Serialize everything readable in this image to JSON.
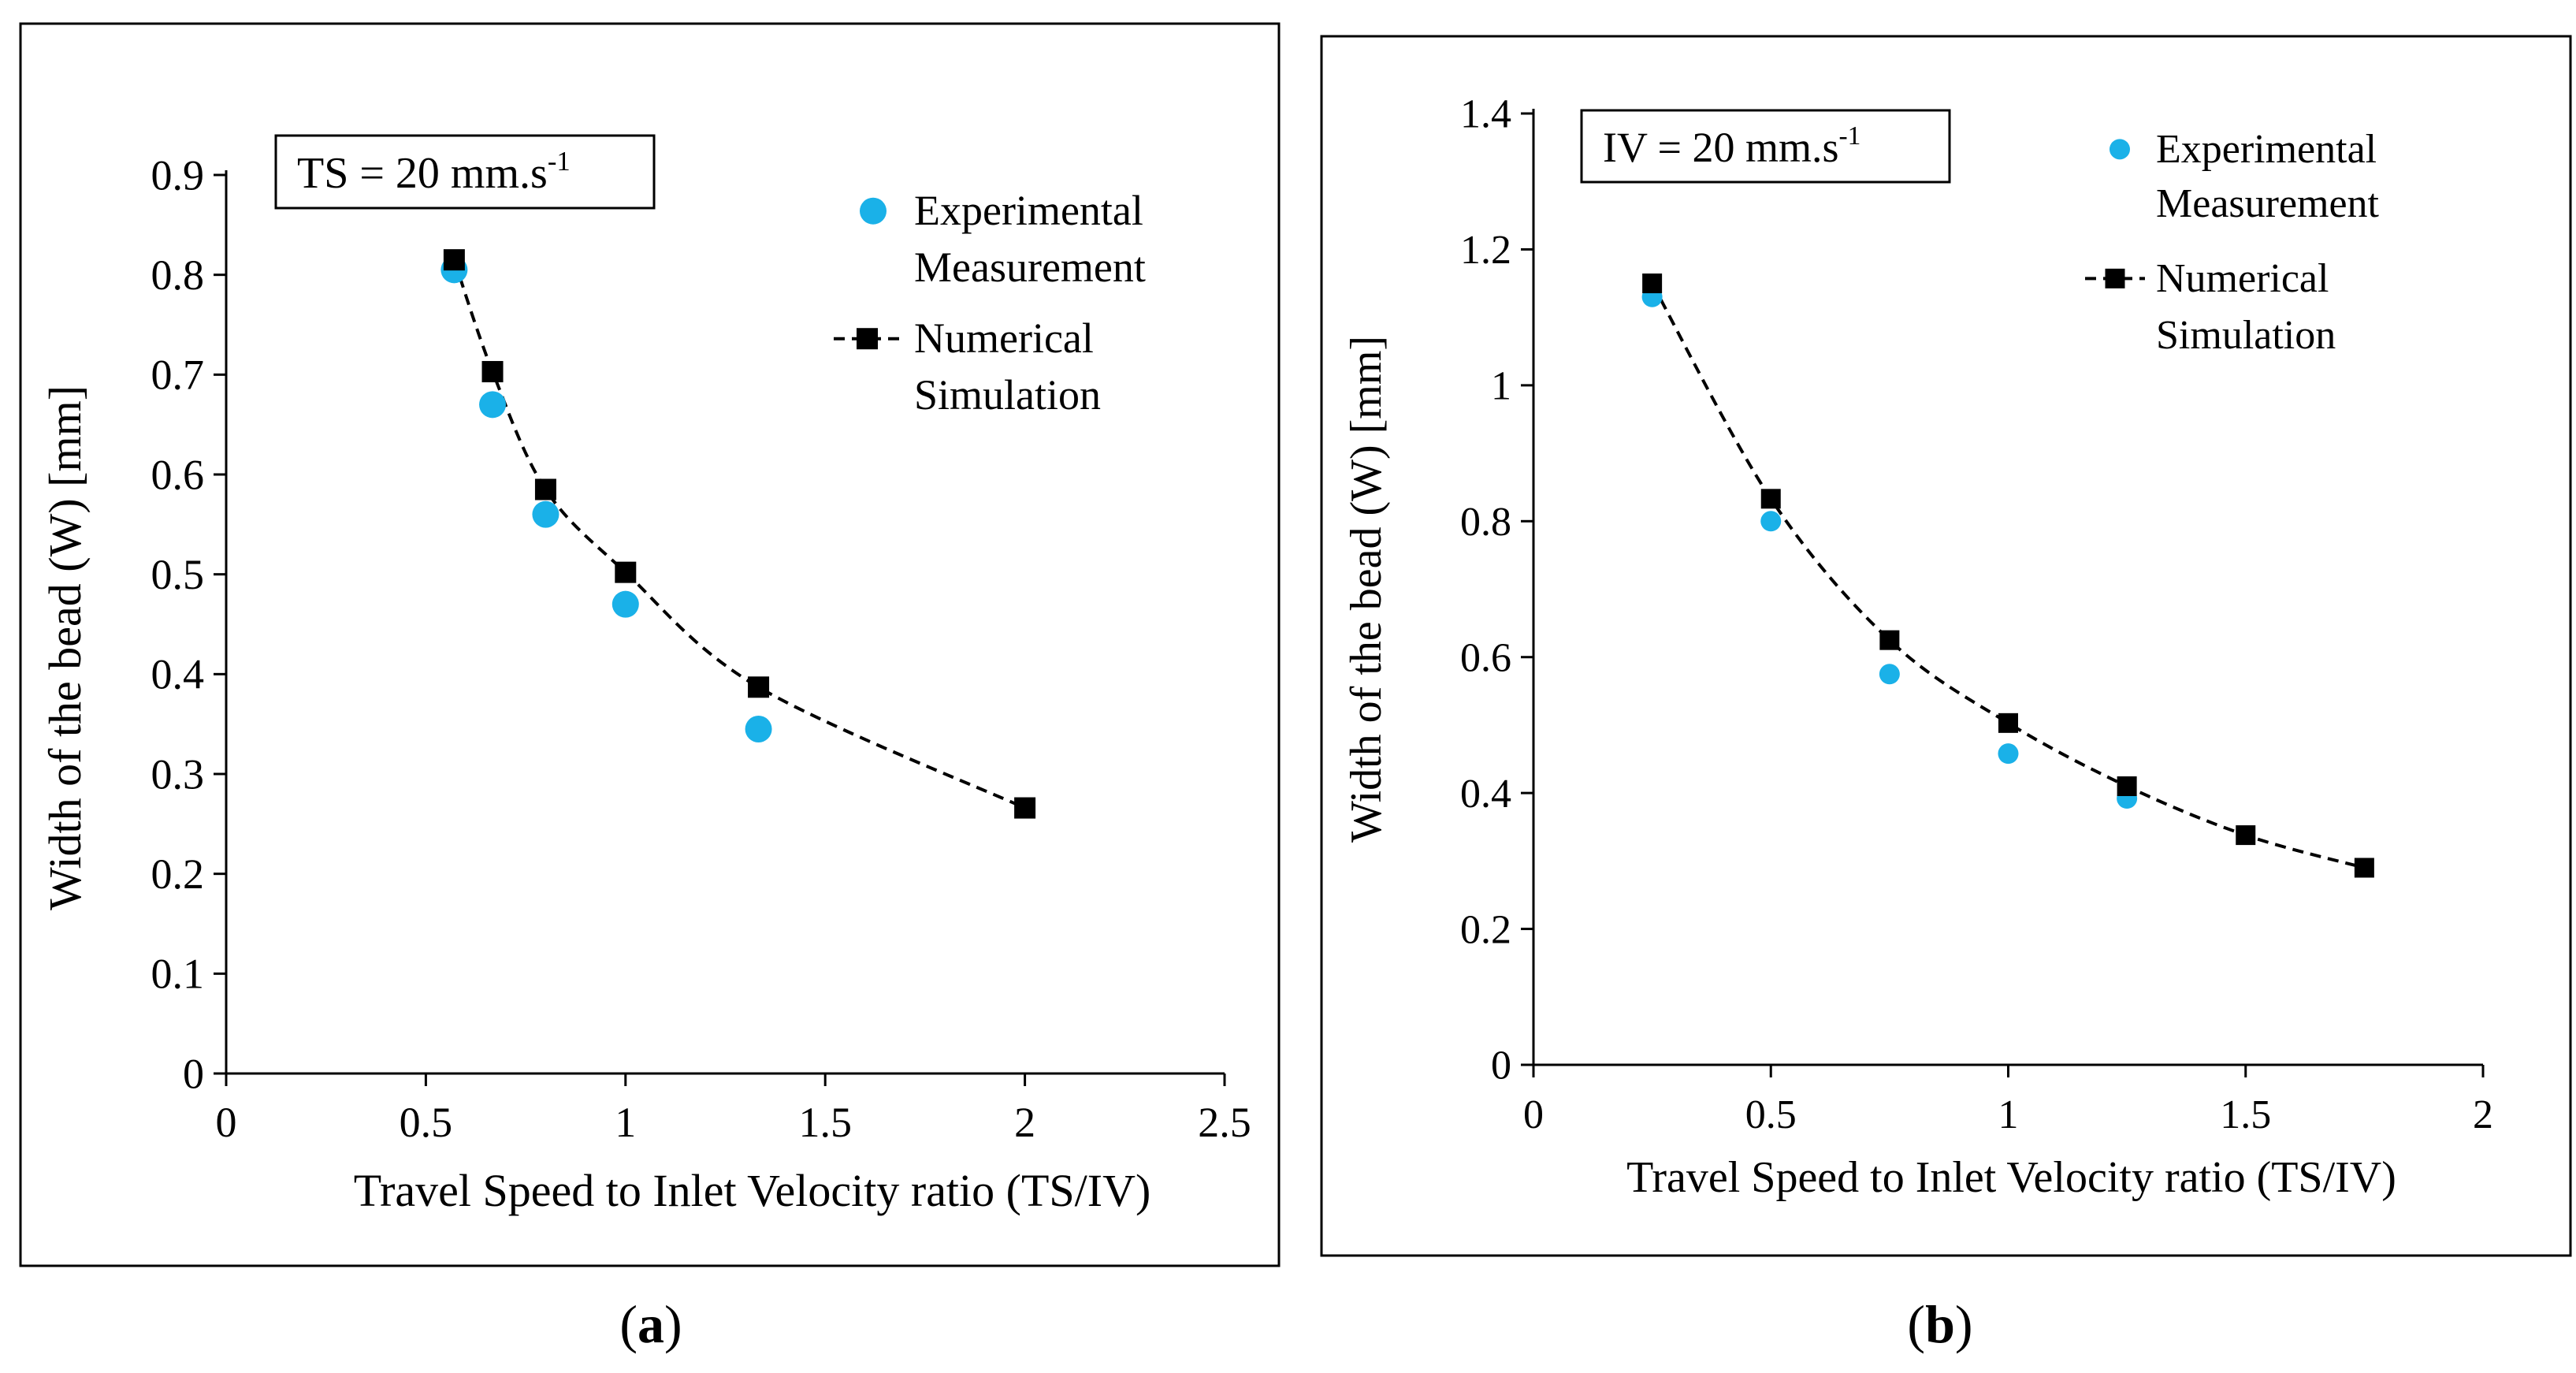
{
  "figure": {
    "panel_captions": [
      "a",
      "b"
    ]
  },
  "colors": {
    "experimental": "#1ab1e8",
    "numerical": "#000000",
    "axis": "#000000",
    "frame": "#000000",
    "background": "#ffffff"
  },
  "chart_data": [
    {
      "type": "scatter",
      "panel": "a",
      "xlabel": "Travel Speed to Inlet Velocity ratio (TS/IV)",
      "ylabel": "Width of the bead (W) [mm]",
      "xlim": [
        0,
        2.5
      ],
      "ylim": [
        0,
        0.9
      ],
      "xticks": [
        0,
        0.5,
        1,
        1.5,
        2,
        2.5
      ],
      "xtick_labels": [
        "0",
        "0.5",
        "1",
        "1.5",
        "2",
        "2.5"
      ],
      "yticks": [
        0,
        0.1,
        0.2,
        0.3,
        0.4,
        0.5,
        0.6,
        0.7,
        0.8,
        0.9
      ],
      "ytick_labels": [
        "0",
        "0.1",
        "0.2",
        "0.3",
        "0.4",
        "0.5",
        "0.6",
        "0.7",
        "0.8",
        "0.9"
      ],
      "annotation": {
        "main": "TS = 20 mm.s",
        "sup": "-1"
      },
      "legend": {
        "position": "top-right",
        "entries": [
          {
            "series": "Experimental Measurement",
            "lines": [
              "Experimental",
              "Measurement"
            ]
          },
          {
            "series": "Numerical Simulation",
            "lines": [
              "Numerical",
              "Simulation"
            ]
          }
        ]
      },
      "series": [
        {
          "name": "Experimental Measurement",
          "marker": "circle",
          "x": [
            0.571,
            0.667,
            0.8,
            1.0,
            1.333
          ],
          "y": [
            0.805,
            0.67,
            0.56,
            0.47,
            0.345
          ]
        },
        {
          "name": "Numerical Simulation",
          "marker": "square",
          "line": "dashed",
          "x": [
            0.571,
            0.667,
            0.8,
            1.0,
            1.333,
            2.0
          ],
          "y": [
            0.815,
            0.703,
            0.585,
            0.502,
            0.387,
            0.266
          ]
        }
      ]
    },
    {
      "type": "scatter",
      "panel": "b",
      "xlabel": "Travel Speed to Inlet Velocity ratio (TS/IV)",
      "ylabel": "Width of the bead (W) [mm]",
      "xlim": [
        0,
        2
      ],
      "ylim": [
        0,
        1.4
      ],
      "xticks": [
        0,
        0.5,
        1,
        1.5,
        2
      ],
      "xtick_labels": [
        "0",
        "0.5",
        "1",
        "1.5",
        "2"
      ],
      "yticks": [
        0,
        0.2,
        0.4,
        0.6,
        0.8,
        1.0,
        1.2,
        1.4
      ],
      "ytick_labels": [
        "0",
        "0.2",
        "0.4",
        "0.6",
        "0.8",
        "1",
        "1.2",
        "1.4"
      ],
      "annotation": {
        "main": "IV = 20 mm.s",
        "sup": "-1"
      },
      "legend": {
        "position": "top-right",
        "entries": [
          {
            "series": "Experimental Measurement",
            "lines": [
              "Experimental",
              "Measurement"
            ]
          },
          {
            "series": "Numerical Simulation",
            "lines": [
              "Numerical",
              "Simulation"
            ]
          }
        ]
      },
      "series": [
        {
          "name": "Experimental Measurement",
          "marker": "circle",
          "x": [
            0.25,
            0.5,
            0.75,
            1.0,
            1.25
          ],
          "y": [
            1.13,
            0.8,
            0.575,
            0.458,
            0.392
          ]
        },
        {
          "name": "Numerical Simulation",
          "marker": "square",
          "line": "dashed",
          "x": [
            0.25,
            0.5,
            0.75,
            1.0,
            1.25,
            1.5,
            1.75
          ],
          "y": [
            1.15,
            0.833,
            0.625,
            0.503,
            0.41,
            0.338,
            0.29
          ]
        }
      ]
    }
  ]
}
